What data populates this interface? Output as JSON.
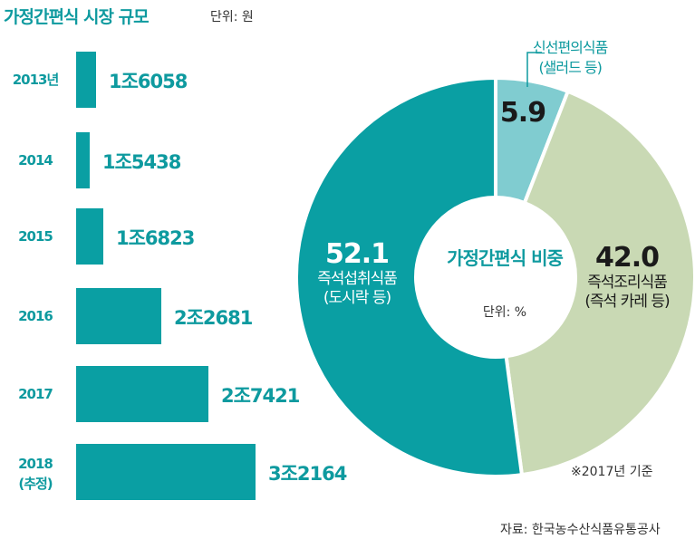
{
  "title": "가정간편식 시장 규모",
  "unit_label": "단위: 원",
  "chart_data": [
    {
      "type": "bar",
      "orientation": "horizontal",
      "categories": [
        "2013년",
        "2014",
        "2015",
        "2016",
        "2017",
        "2018 (추정)"
      ],
      "value_labels": [
        "1조6058",
        "1조5438",
        "1조6823",
        "2조2681",
        "2조7421",
        "3조2164"
      ],
      "values": [
        16058,
        15438,
        16823,
        22681,
        27421,
        32164
      ],
      "value_unit": "억원"
    },
    {
      "type": "pie",
      "title": "가정간편식 비중",
      "unit_label": "단위: %",
      "slices": [
        {
          "label": "신선편의식품",
          "sublabel": "(샐러드 등)",
          "value": 5.9,
          "value_label": "5.9",
          "color": "#80ccd0"
        },
        {
          "label": "즉석조리식품",
          "sublabel": "(즉석 카레 등)",
          "value": 42.0,
          "value_label": "42.0",
          "color": "#c9d9b4"
        },
        {
          "label": "즉석섭취식품",
          "sublabel": "(도시락 등)",
          "value": 52.1,
          "value_label": "52.1",
          "color": "#0a9fa3"
        }
      ],
      "note": "※2017년 기준"
    }
  ],
  "source": "자료: 한국농수산식품유통공사",
  "colors": {
    "accent": "#0e9a9f",
    "bar": "#0a9fa3"
  }
}
